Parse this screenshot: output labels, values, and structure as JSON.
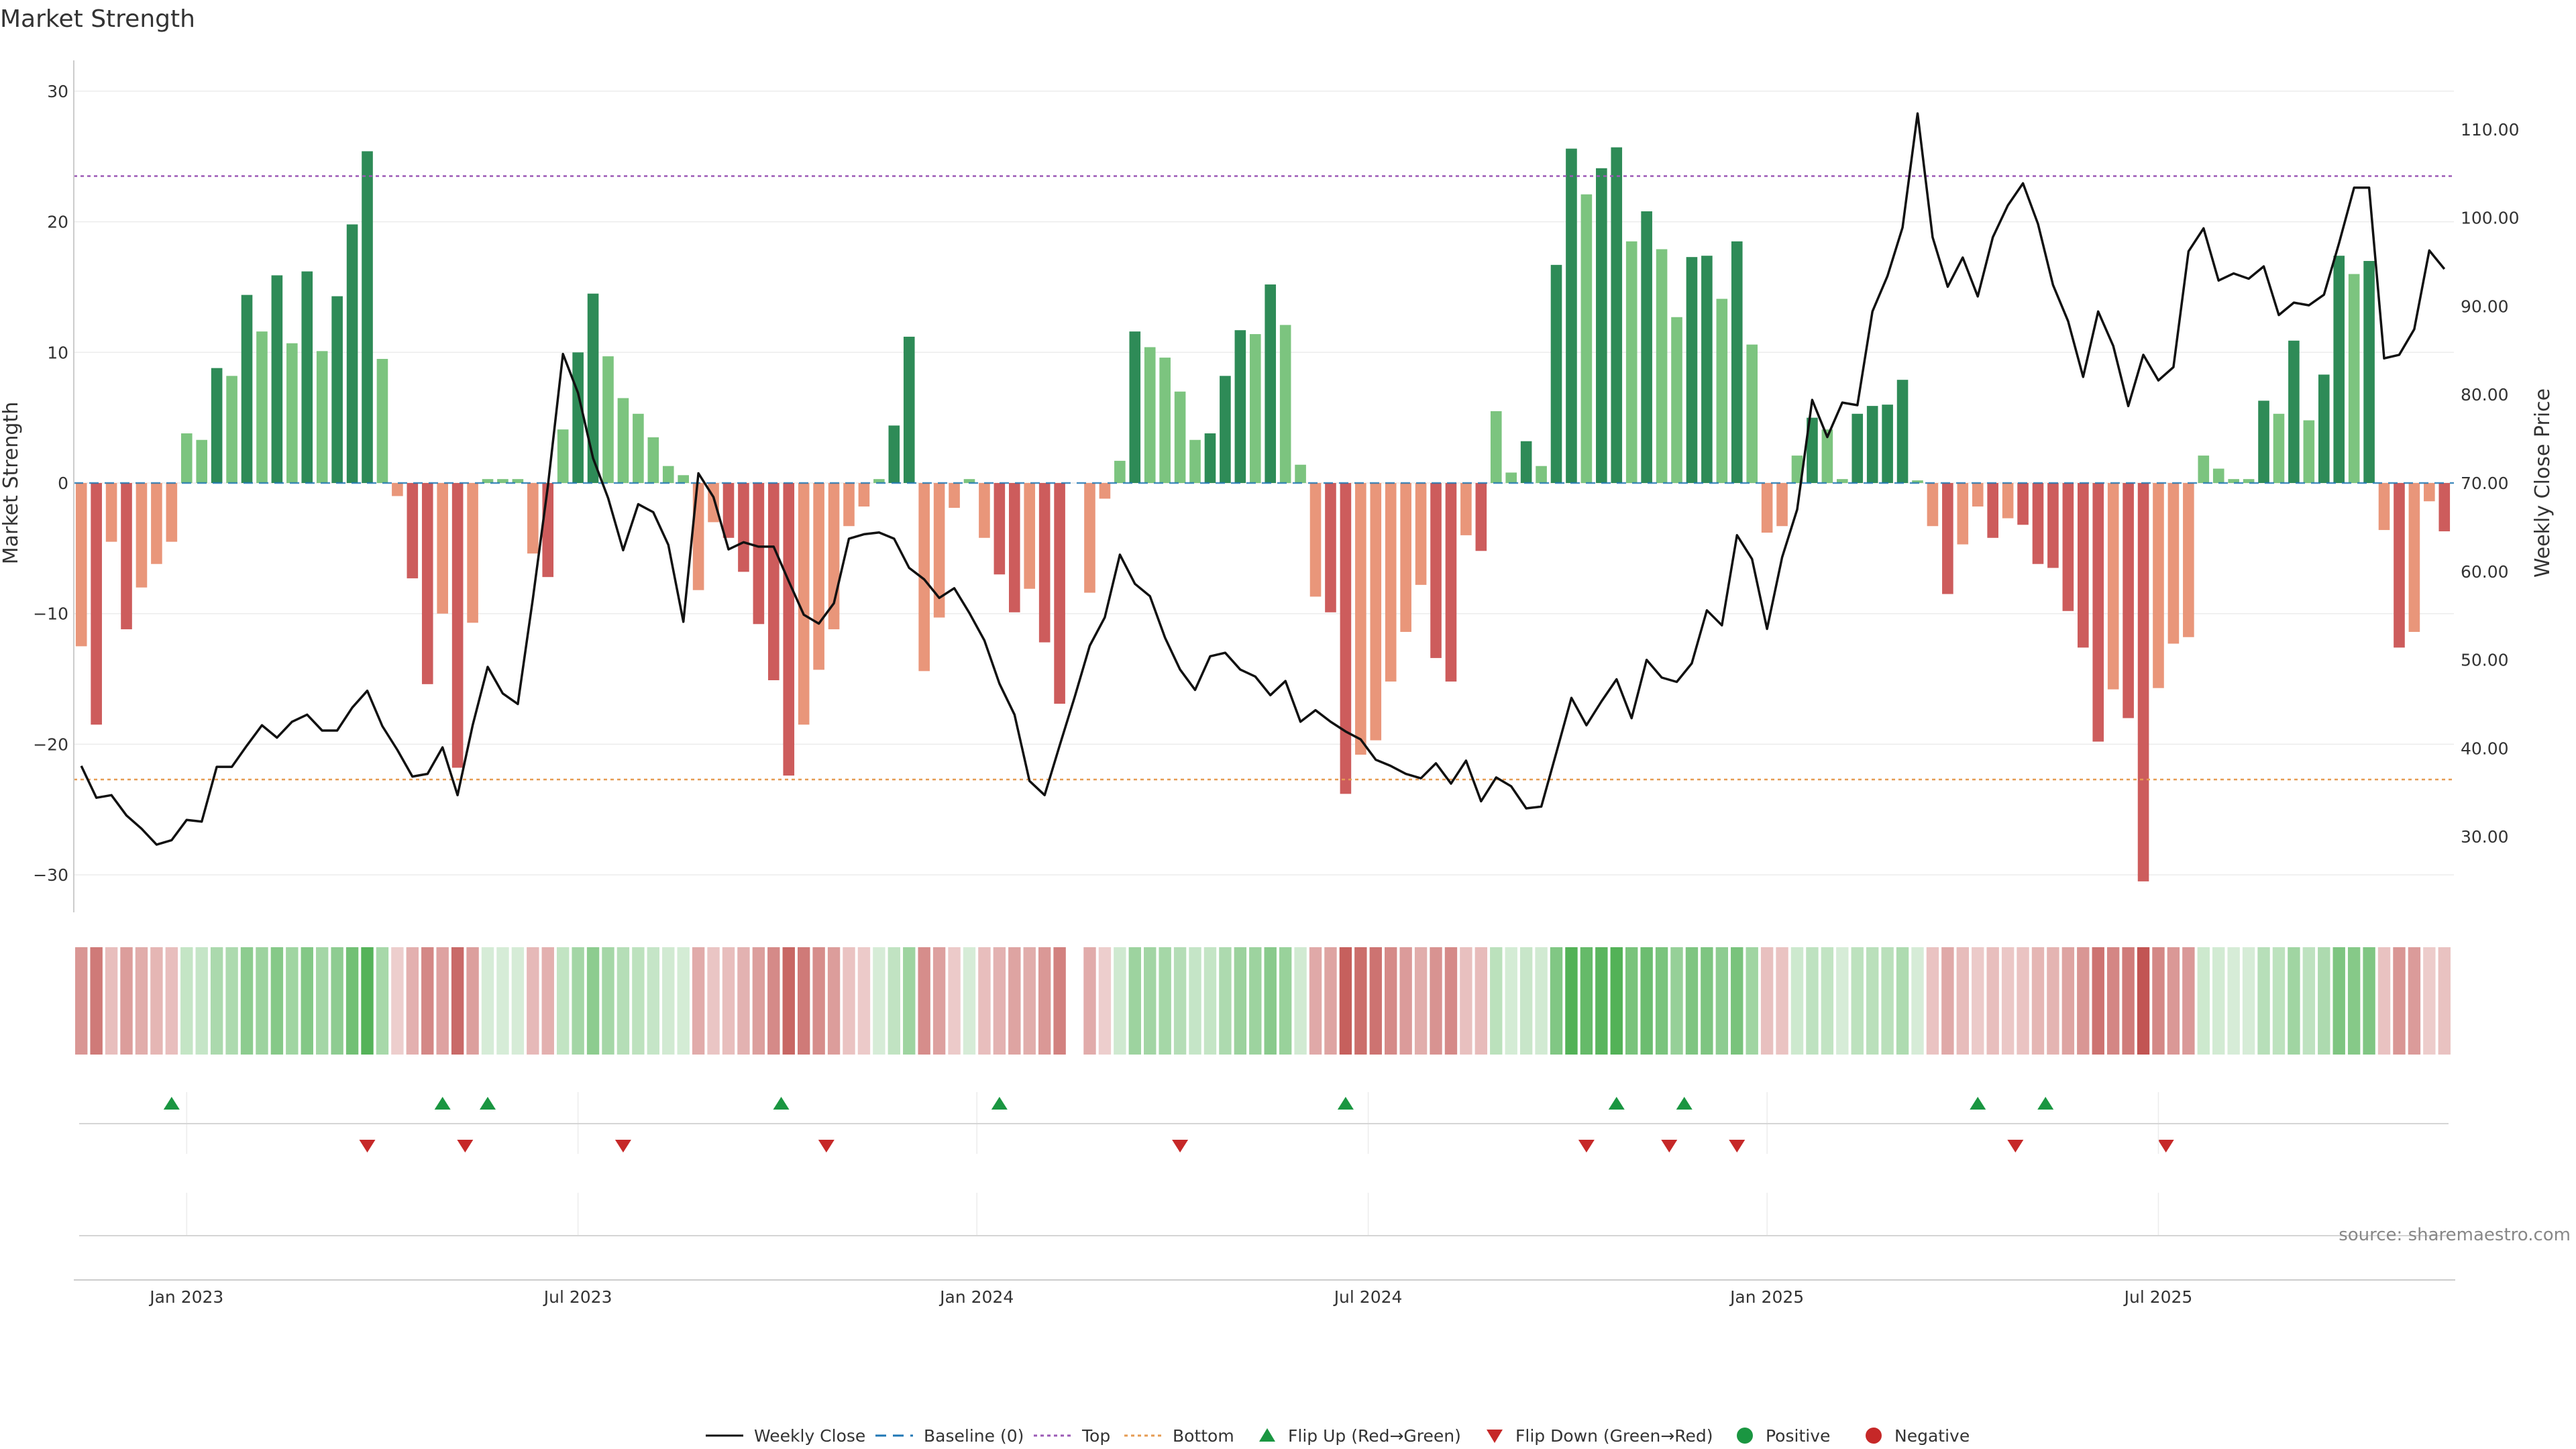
{
  "chart_data": {
    "type": "bar",
    "title": "Market Strength",
    "source_text": "source: sharemaestro.com",
    "ylabel_left": "Market Strength",
    "ylabel_right": "Weekly Close Price",
    "ylim_left": [
      -33,
      33
    ],
    "ylim_right": [
      24.5,
      118.5
    ],
    "left_ticks": [
      30,
      20,
      10,
      0,
      -10,
      -20,
      -30
    ],
    "left_tick_labels": [
      "30",
      "20",
      "10",
      "0",
      "−10",
      "−20",
      "−30"
    ],
    "right_ticks": [
      110,
      100,
      90,
      80,
      70,
      60,
      50,
      40,
      30
    ],
    "right_tick_labels": [
      "110.00",
      "100.00",
      "90.00",
      "80.00",
      "70.00",
      "60.00",
      "50.00",
      "40.00",
      "30.00"
    ],
    "x_ticks": [
      {
        "label": "Jan 2023",
        "week": 7
      },
      {
        "label": "Jul 2023",
        "week": 33
      },
      {
        "label": "Jan 2024",
        "week": 59.5
      },
      {
        "label": "Jul 2024",
        "week": 85.5
      },
      {
        "label": "Jan 2025",
        "week": 112
      },
      {
        "label": "Jul 2025",
        "week": 138
      }
    ],
    "top_line": 23.5,
    "bottom_line": -22.7,
    "colors": {
      "strong_green": "#2e8b57",
      "light_green": "#7cc47f",
      "strong_red": "#cd5c5c",
      "light_red": "#e9967a",
      "price_line": "#111111",
      "top_line": "#9b59b6",
      "bottom_line": "#e69b52",
      "baseline": "#1f77b4",
      "flip_up": "#1a9641",
      "flip_down": "#c62828",
      "positive": "#1a9641",
      "negative": "#c62828"
    },
    "strength": [
      -12.5,
      -18.5,
      -4.5,
      -11.2,
      -8,
      -6.2,
      -4.5,
      3.8,
      3.3,
      8.8,
      8.2,
      14.4,
      11.6,
      15.9,
      10.7,
      16.2,
      10.1,
      14.3,
      19.8,
      25.4,
      9.5,
      -1,
      -7.3,
      -15.4,
      -10,
      -21.8,
      -10.7,
      0.3,
      0.3,
      0.3,
      -5.4,
      -7.2,
      4.1,
      10,
      14.5,
      9.7,
      6.5,
      5.3,
      3.5,
      1.3,
      0.6,
      -8.2,
      -3,
      -4.2,
      -6.8,
      -10.8,
      -15.1,
      -22.4,
      -18.5,
      -14.3,
      -11.2,
      -3.3,
      -1.8,
      0.3,
      4.4,
      11.2,
      -14.4,
      -10.3,
      -1.9,
      0.3,
      -4.2,
      -7,
      -9.9,
      -8.1,
      -12.2,
      -16.9,
      0,
      -8.4,
      -1.2,
      1.7,
      11.6,
      10.4,
      9.6,
      7,
      3.3,
      3.8,
      8.2,
      11.7,
      11.4,
      15.2,
      12.1,
      1.4,
      -8.7,
      -9.9,
      -23.8,
      -20.8,
      -19.7,
      -15.2,
      -11.4,
      -7.8,
      -13.4,
      -15.2,
      -4,
      -5.2,
      5.5,
      0.8,
      3.2,
      1.3,
      16.7,
      25.6,
      22.1,
      24.1,
      25.7,
      18.5,
      20.8,
      17.9,
      12.7,
      17.3,
      17.4,
      14.1,
      18.5,
      10.6,
      -3.8,
      -3.3,
      2.1,
      5,
      4.1,
      0.3,
      5.3,
      5.9,
      6,
      7.9,
      0.2,
      -3.3,
      -8.5,
      -4.7,
      -1.8,
      -4.2,
      -2.7,
      -3.2,
      -6.2,
      -6.5,
      -9.8,
      -12.6,
      -19.8,
      -15.8,
      -18,
      -30.5,
      -15.7,
      -12.3,
      -11.8,
      2.1,
      1.1,
      0.3,
      0.3,
      6.3,
      5.3,
      10.9,
      4.8,
      8.3,
      17.4,
      16,
      17,
      -3.6,
      -12.6,
      -11.4,
      -1.4,
      -3.7
    ],
    "price": [
      38,
      34.4,
      34.7,
      32.4,
      30.9,
      29.1,
      29.6,
      31.9,
      31.7,
      37.9,
      37.9,
      40.3,
      42.6,
      41.2,
      43,
      43.8,
      42,
      42,
      44.6,
      46.5,
      42.5,
      39.8,
      36.8,
      37.1,
      40.1,
      34.7,
      42.6,
      49.2,
      46.2,
      45,
      56.9,
      69.7,
      84.6,
      80.2,
      72.8,
      68.3,
      62.4,
      67.6,
      66.7,
      63,
      54.3,
      71.1,
      68.4,
      62.5,
      63.3,
      62.8,
      62.8,
      58.9,
      55.1,
      54.1,
      56.4,
      63.7,
      64.2,
      64.4,
      63.7,
      60.4,
      59.1,
      57,
      58.1,
      55.3,
      52.2,
      47.3,
      43.8,
      36.3,
      34.7,
      40.3,
      45.8,
      51.6,
      54.8,
      61.9,
      58.6,
      57.2,
      52.5,
      48.9,
      46.6,
      50.4,
      50.8,
      48.9,
      48.1,
      46,
      47.6,
      43,
      44.3,
      43,
      41.9,
      41,
      38.7,
      38,
      37.1,
      36.6,
      38.3,
      36,
      38.6,
      34,
      36.7,
      35.7,
      33.2,
      33.4,
      39.5,
      45.7,
      42.6,
      45.3,
      47.8,
      43.4,
      50,
      48,
      47.5,
      49.6,
      55.6,
      53.9,
      64.1,
      61.4,
      53.5,
      61.6,
      67,
      79.4,
      75.2,
      79.1,
      78.8,
      89.4,
      93.4,
      98.9,
      111.8,
      97.8,
      92.2,
      95.5,
      91.1,
      97.8,
      101.4,
      103.9,
      99.3,
      92.4,
      88.3,
      82,
      89.4,
      85.5,
      78.7,
      84.5,
      81.6,
      83.1,
      96.2,
      98.8,
      92.9,
      93.7,
      93.1,
      94.5,
      89,
      90.4,
      90.1,
      91.3,
      97.1,
      103.4,
      103.4,
      84.1,
      84.5,
      87.4,
      96.3,
      94.2
    ],
    "flip_up_weeks": [
      6,
      24,
      27,
      46.5,
      61,
      84,
      102,
      106.5,
      126,
      130.5
    ],
    "flip_down_weeks": [
      19,
      25.5,
      36,
      49.5,
      73,
      100,
      105.5,
      110,
      128.5,
      138.5
    ]
  },
  "legend": [
    {
      "label": "Weekly Close",
      "icon": "solid-line"
    },
    {
      "label": "Baseline (0)",
      "icon": "dashed-line"
    },
    {
      "label": "Top",
      "icon": "dotted-line"
    },
    {
      "label": "Bottom",
      "icon": "dotted-line"
    },
    {
      "label": "Flip Up (Red→Green)",
      "icon": "triangle-up"
    },
    {
      "label": "Flip Down (Green→Red)",
      "icon": "triangle-down"
    },
    {
      "label": "Positive",
      "icon": "circle"
    },
    {
      "label": "Negative",
      "icon": "circle"
    }
  ]
}
